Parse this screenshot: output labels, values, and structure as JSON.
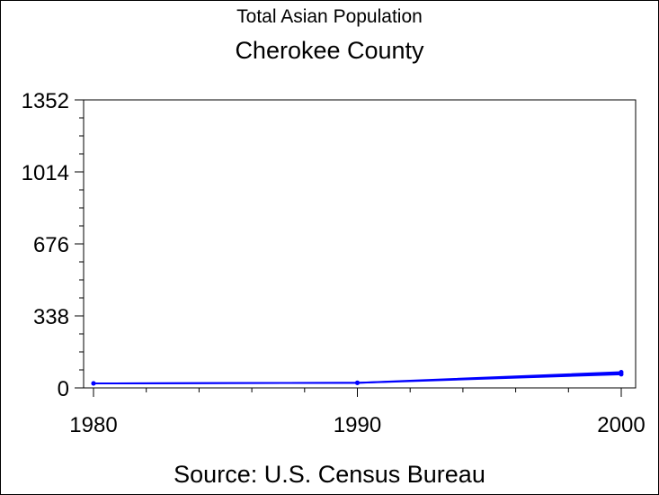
{
  "chart_data": {
    "type": "line",
    "title": "Total Asian Population",
    "subtitle": "Cherokee County",
    "source": "Source: U.S. Census Bureau",
    "xlabel": "",
    "ylabel": "",
    "x": [
      1980,
      1990,
      2000
    ],
    "series": [
      {
        "values": [
          21,
          24,
          74
        ]
      },
      {
        "values": [
          21,
          24,
          64
        ]
      }
    ],
    "xlim": [
      1980,
      2000
    ],
    "ylim": [
      0,
      1352
    ],
    "x_ticks": [
      "1980",
      "1990",
      "2000"
    ],
    "y_ticks": [
      "0",
      "338",
      "676",
      "1014",
      "1352"
    ],
    "y_tick_values": [
      0,
      338,
      676,
      1014,
      1352
    ],
    "grid": false,
    "legend": "none",
    "colors": {
      "line": "#0000ff",
      "axis": "#000000"
    }
  }
}
